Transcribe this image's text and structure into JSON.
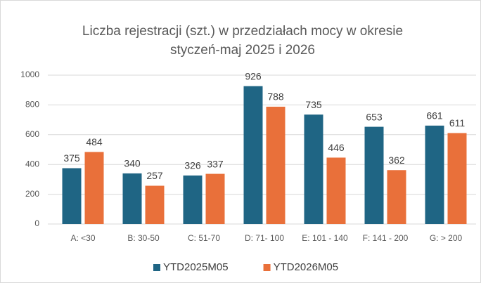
{
  "chart_data": {
    "type": "bar",
    "title": [
      "Liczba rejestracji (szt.) w przedziałach mocy w okresie",
      "styczeń-maj 2025 i 2026"
    ],
    "categories": [
      "A: <30",
      "B: 30-50",
      "C: 51-70",
      "D: 71- 100",
      "E: 101 - 140",
      "F: 141 - 200",
      "G: > 200"
    ],
    "series": [
      {
        "name": "YTD2025M05",
        "color": "#1f6584",
        "values": [
          375,
          340,
          326,
          926,
          735,
          653,
          661
        ]
      },
      {
        "name": "YTD2026M05",
        "color": "#e9703a",
        "values": [
          484,
          257,
          337,
          788,
          446,
          362,
          611
        ]
      }
    ],
    "ylim": [
      0,
      1000
    ],
    "yticks": [
      0,
      200,
      400,
      600,
      800,
      1000
    ],
    "grid": true,
    "legend": "bottom"
  }
}
